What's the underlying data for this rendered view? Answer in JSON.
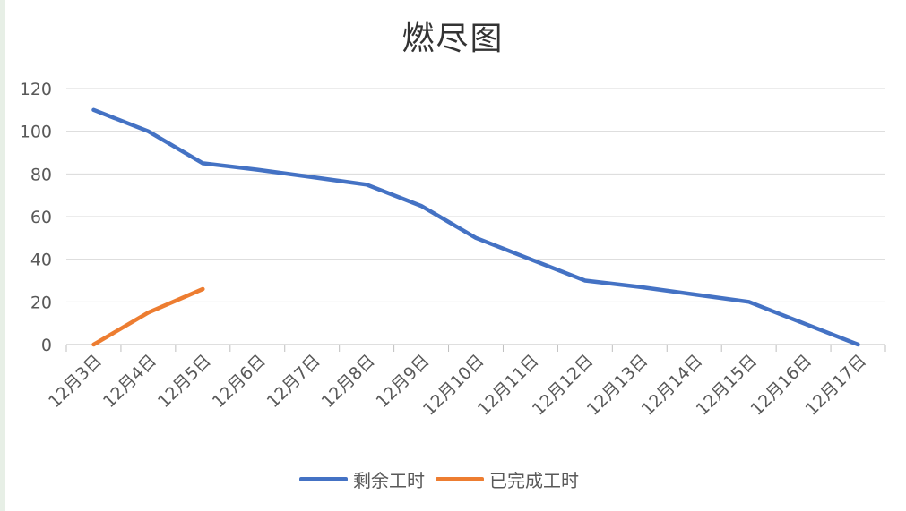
{
  "chart_data": {
    "type": "line",
    "title": "燃尽图",
    "categories": [
      "12月3日",
      "12月4日",
      "12月5日",
      "12月6日",
      "12月7日",
      "12月8日",
      "12月9日",
      "12月10日",
      "12月11日",
      "12月12日",
      "12月13日",
      "12月14日",
      "12月15日",
      "12月16日",
      "12月17日"
    ],
    "series": [
      {
        "name": "剩余工时",
        "color": "#4472c4",
        "values": [
          110,
          100,
          85,
          82,
          78.5,
          75,
          65,
          50,
          40,
          30,
          27,
          23.5,
          20,
          10,
          0
        ]
      },
      {
        "name": "已完成工时",
        "color": "#ed7d31",
        "values": [
          0,
          15,
          26,
          null,
          null,
          null,
          null,
          null,
          null,
          null,
          null,
          null,
          null,
          null,
          null
        ]
      }
    ],
    "y_ticks": [
      "0",
      "20",
      "40",
      "60",
      "80",
      "100",
      "120"
    ],
    "ylim": [
      0,
      120
    ],
    "xlabel": "",
    "ylabel": "",
    "grid": true,
    "legend": "bottom"
  }
}
